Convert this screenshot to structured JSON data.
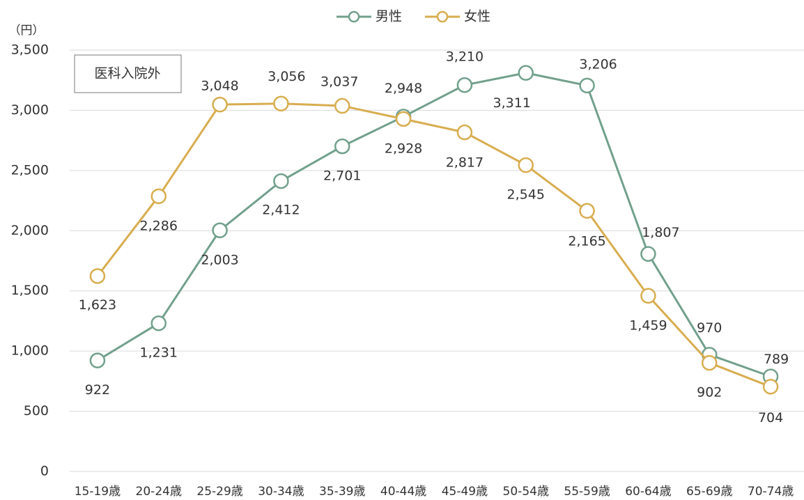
{
  "chart_data": {
    "type": "line",
    "y_unit": "（円）",
    "annotation": "医科入院外",
    "categories": [
      "15-19歳",
      "20-24歳",
      "25-29歳",
      "30-34歳",
      "35-39歳",
      "40-44歳",
      "45-49歳",
      "50-54歳",
      "55-59歳",
      "60-64歳",
      "65-69歳",
      "70-74歳"
    ],
    "series": [
      {
        "name": "男性",
        "color": "#71a08c",
        "label_color": "#5f8c7a",
        "values": [
          922,
          1231,
          2003,
          2412,
          2701,
          2948,
          3210,
          3311,
          3206,
          1807,
          970,
          789
        ],
        "value_labels": [
          "922",
          "1,231",
          "2,003",
          "2,412",
          "2,701",
          "2,948",
          "3,210",
          "3,311",
          "3,206",
          "1,807",
          "970",
          "789"
        ]
      },
      {
        "name": "女性",
        "color": "#d8ad4f",
        "label_color": "#c49a38",
        "values": [
          1623,
          2286,
          3048,
          3056,
          3037,
          2928,
          2817,
          2545,
          2165,
          1459,
          902,
          704
        ],
        "value_labels": [
          "1,623",
          "2,286",
          "3,048",
          "3,056",
          "3,037",
          "2,928",
          "2,817",
          "2,545",
          "2,165",
          "1,459",
          "902",
          "704"
        ]
      }
    ],
    "ylim": [
      0,
      3500
    ],
    "yticks": [
      0,
      500,
      {
        "value": 1000,
        "label": "1,000"
      },
      {
        "value": 1500,
        "label": "1,500"
      },
      {
        "value": 2000,
        "label": "2,000"
      },
      {
        "value": 2500,
        "label": "2,500"
      },
      {
        "value": 3000,
        "label": "3,000"
      },
      {
        "value": 3500,
        "label": "3,500"
      }
    ],
    "grid": true,
    "legend": "top"
  }
}
